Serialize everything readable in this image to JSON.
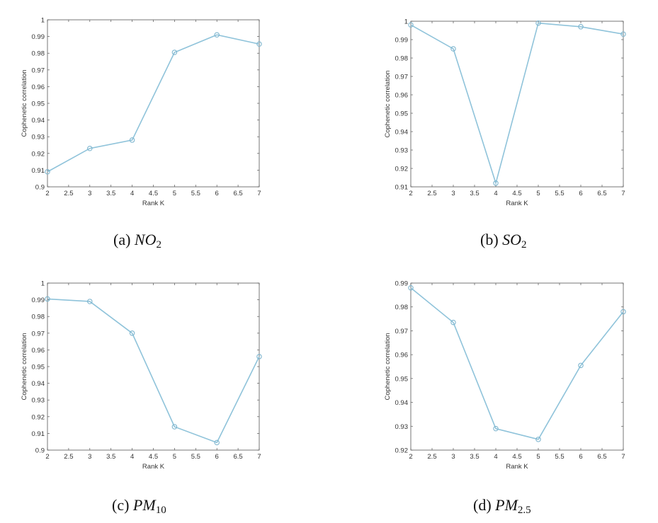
{
  "colors": {
    "line": "#8fc3da",
    "marker": "#7fb6cf",
    "axis": "#555555"
  },
  "chart_data": [
    {
      "type": "line",
      "caption": {
        "prefix": "(a)",
        "symbol": "NO",
        "subscript": "2"
      },
      "xlabel": "Rank K",
      "ylabel": "Cophenetic correlation",
      "xlim": [
        2,
        7
      ],
      "ylim": [
        0.9,
        1
      ],
      "xticks": [
        "2",
        "2.5",
        "3",
        "3.5",
        "4",
        "4.5",
        "5",
        "5.5",
        "6",
        "6.5",
        "7"
      ],
      "yticks": [
        "0.9",
        "0.91",
        "0.92",
        "0.93",
        "0.94",
        "0.95",
        "0.96",
        "0.97",
        "0.98",
        "0.99",
        "1"
      ],
      "x": [
        2,
        3,
        4,
        5,
        6,
        7
      ],
      "y": [
        0.909,
        0.923,
        0.928,
        0.9805,
        0.991,
        0.9855
      ]
    },
    {
      "type": "line",
      "caption": {
        "prefix": "(b)",
        "symbol": "SO",
        "subscript": "2"
      },
      "xlabel": "Rank K",
      "ylabel": "Cophenetic correlation",
      "xlim": [
        2,
        7
      ],
      "ylim": [
        0.91,
        1
      ],
      "xticks": [
        "2",
        "2.5",
        "3",
        "3.5",
        "4",
        "4.5",
        "5",
        "5.5",
        "6",
        "6.5",
        "7"
      ],
      "yticks": [
        "0.91",
        "0.92",
        "0.93",
        "0.94",
        "0.95",
        "0.96",
        "0.97",
        "0.98",
        "0.99",
        "1"
      ],
      "x": [
        2,
        3,
        4,
        5,
        6,
        7
      ],
      "y": [
        0.998,
        0.985,
        0.912,
        0.999,
        0.997,
        0.993
      ]
    },
    {
      "type": "line",
      "caption": {
        "prefix": "(c)",
        "symbol": "PM",
        "subscript": "10"
      },
      "xlabel": "Rank K",
      "ylabel": "Cophenetic correlation",
      "xlim": [
        2,
        7
      ],
      "ylim": [
        0.9,
        1
      ],
      "xticks": [
        "2",
        "2.5",
        "3",
        "3.5",
        "4",
        "4.5",
        "5",
        "5.5",
        "6",
        "6.5",
        "7"
      ],
      "yticks": [
        "0.9",
        "0.91",
        "0.92",
        "0.93",
        "0.94",
        "0.95",
        "0.96",
        "0.97",
        "0.98",
        "0.99",
        "1"
      ],
      "x": [
        2,
        3,
        4,
        5,
        6,
        7
      ],
      "y": [
        0.9905,
        0.989,
        0.97,
        0.914,
        0.9045,
        0.956
      ]
    },
    {
      "type": "line",
      "caption": {
        "prefix": "(d)",
        "symbol": "PM",
        "subscript": "2.5"
      },
      "xlabel": "Rank K",
      "ylabel": "Cophenetic correlation",
      "xlim": [
        2,
        7
      ],
      "ylim": [
        0.92,
        0.99
      ],
      "xticks": [
        "2",
        "2.5",
        "3",
        "3.5",
        "4",
        "4.5",
        "5",
        "5.5",
        "6",
        "6.5",
        "7"
      ],
      "yticks": [
        "0.92",
        "0.93",
        "0.94",
        "0.95",
        "0.96",
        "0.97",
        "0.98",
        "0.99"
      ],
      "x": [
        2,
        3,
        4,
        5,
        6,
        7
      ],
      "y": [
        0.988,
        0.9735,
        0.929,
        0.9245,
        0.9555,
        0.978
      ]
    }
  ]
}
